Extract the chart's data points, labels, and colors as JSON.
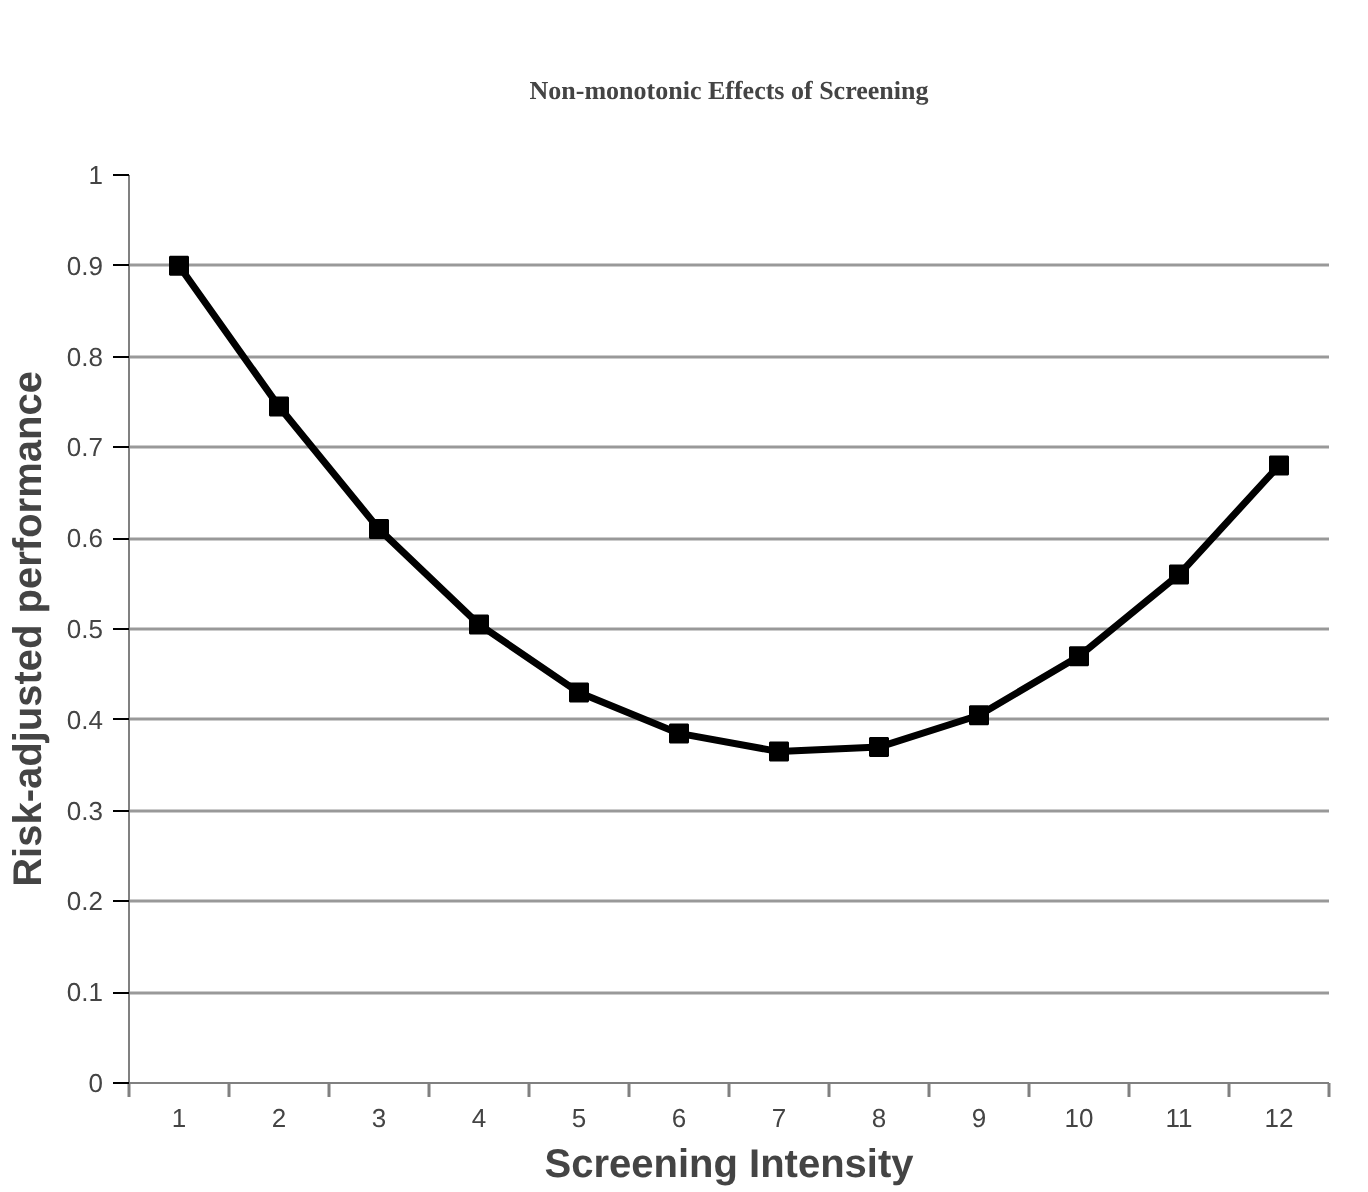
{
  "chart_data": {
    "type": "line",
    "title": "Non-monotonic Effects of Screening",
    "xlabel": "Screening Intensity",
    "ylabel": "Risk-adjusted performance",
    "x": [
      1,
      2,
      3,
      4,
      5,
      6,
      7,
      8,
      9,
      10,
      11,
      12
    ],
    "series": [
      {
        "color": "#000000",
        "values": [
          0.9,
          0.745,
          0.61,
          0.505,
          0.43,
          0.385,
          0.365,
          0.37,
          0.405,
          0.47,
          0.56,
          0.68
        ]
      }
    ],
    "xlim": [
      0.5,
      12.5
    ],
    "xticks": [
      1,
      2,
      3,
      4,
      5,
      6,
      7,
      8,
      9,
      10,
      11,
      12,
      {
        "value": 0.5,
        "label": null
      },
      {
        "value": 1.5,
        "label": null
      },
      {
        "value": 2.5,
        "label": null
      },
      {
        "value": 3.5,
        "label": null
      },
      {
        "value": 4.5,
        "label": null
      },
      {
        "value": 5.5,
        "label": null
      },
      {
        "value": 6.5,
        "label": null
      },
      {
        "value": 7.5,
        "label": null
      },
      {
        "value": 8.5,
        "label": null
      },
      {
        "value": 9.5,
        "label": null
      },
      {
        "value": 10.5,
        "label": null
      },
      {
        "value": 11.5,
        "label": null
      },
      {
        "value": 12.5,
        "label": null
      }
    ],
    "ylim": [
      0,
      1
    ],
    "yticks": [
      0,
      0.1,
      0.2,
      0.3,
      0.4,
      0.5,
      0.6,
      0.7,
      0.8,
      0.9,
      1
    ],
    "grid": "y",
    "marker": "square",
    "line_style": "solid"
  }
}
